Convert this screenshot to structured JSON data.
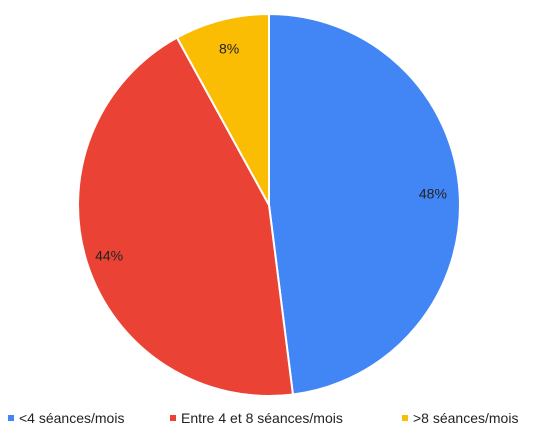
{
  "chart_data": {
    "type": "pie",
    "categories": [
      "<4 séances/mois",
      "Entre 4 et 8 séances/mois",
      ">8 séances/mois"
    ],
    "values": [
      48,
      44,
      8
    ],
    "data_labels": [
      "48%",
      "44%",
      "8%"
    ],
    "colors": [
      "#4285f4",
      "#ea4335",
      "#fbbc04"
    ],
    "legend_position": "bottom",
    "start_angle": "top",
    "direction": "clockwise",
    "title": ""
  }
}
